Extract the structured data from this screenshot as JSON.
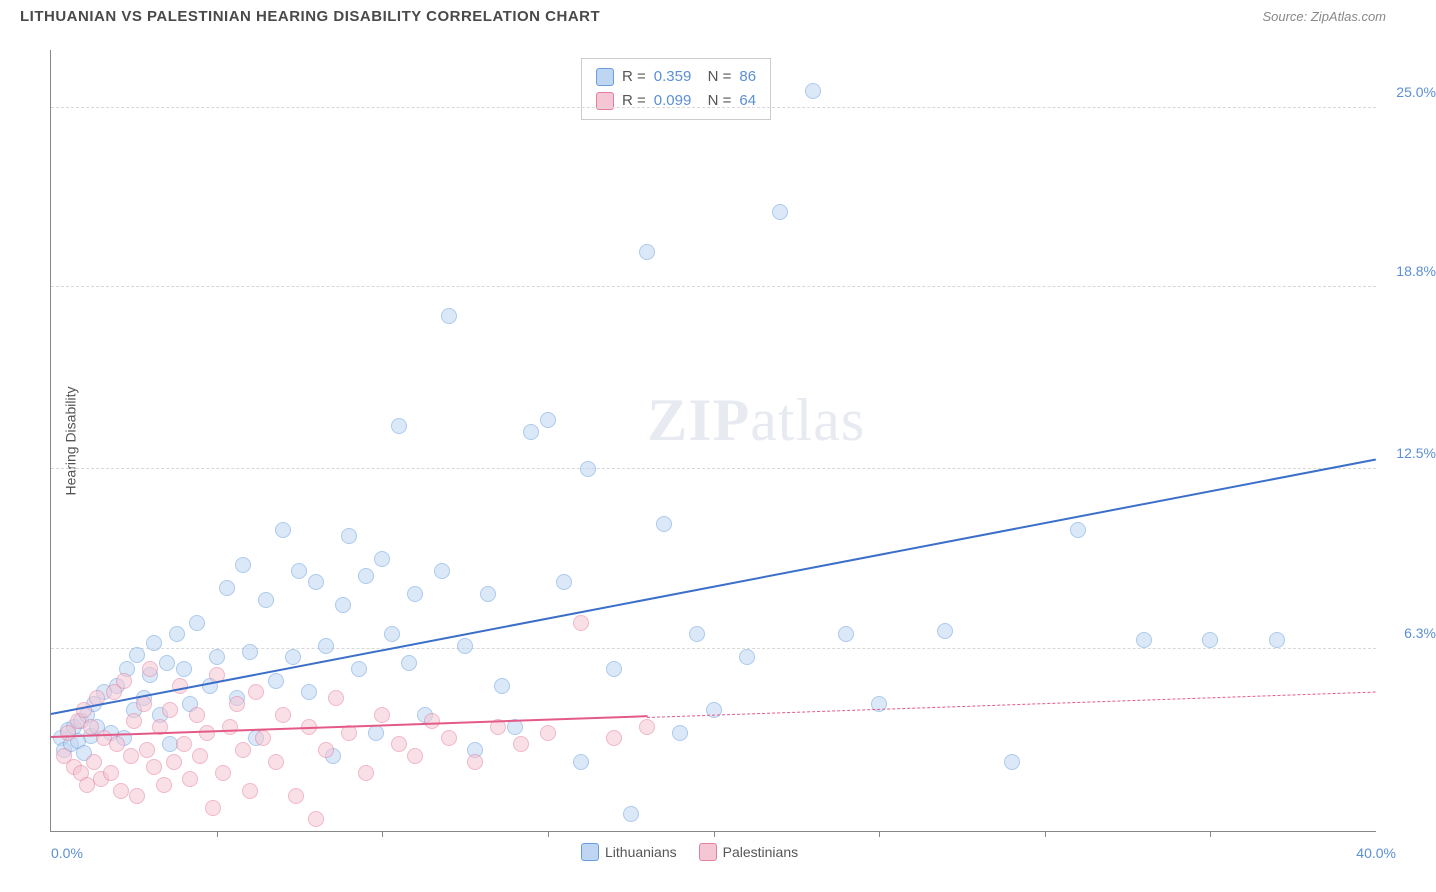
{
  "header": {
    "title": "LITHUANIAN VS PALESTINIAN HEARING DISABILITY CORRELATION CHART",
    "source": "Source: ZipAtlas.com"
  },
  "chart": {
    "type": "scatter",
    "yaxis_title": "Hearing Disability",
    "xlim": [
      0,
      40
    ],
    "ylim": [
      0,
      27
    ],
    "xlabel_min": "0.0%",
    "xlabel_max": "40.0%",
    "ytick_labels": [
      "6.3%",
      "12.5%",
      "18.8%",
      "25.0%"
    ],
    "ytick_values": [
      6.3,
      12.5,
      18.8,
      25.0
    ],
    "xtick_values": [
      5,
      10,
      15,
      20,
      25,
      30,
      35
    ],
    "background_color": "#ffffff",
    "grid_color": "#d8d8d8",
    "marker_radius": 8,
    "marker_opacity": 0.55,
    "watermark": "ZIPatlas",
    "series": [
      {
        "name": "Lithuanians",
        "fill": "#bfd6f2",
        "stroke": "#6a9fde",
        "text_color": "#5b8fd6",
        "R": "0.359",
        "N": "86",
        "trend": {
          "x1": 0,
          "y1": 4.0,
          "x2": 40,
          "y2": 12.8,
          "color": "#3b6fc9",
          "solid_until_x": 40
        },
        "points": [
          [
            0.3,
            3.2
          ],
          [
            0.4,
            2.8
          ],
          [
            0.5,
            3.5
          ],
          [
            0.6,
            3.0
          ],
          [
            0.7,
            3.6
          ],
          [
            0.8,
            3.1
          ],
          [
            0.9,
            3.8
          ],
          [
            1.0,
            2.7
          ],
          [
            1.1,
            4.0
          ],
          [
            1.2,
            3.3
          ],
          [
            1.3,
            4.4
          ],
          [
            1.4,
            3.6
          ],
          [
            1.6,
            4.8
          ],
          [
            1.8,
            3.4
          ],
          [
            2.0,
            5.0
          ],
          [
            2.2,
            3.2
          ],
          [
            2.3,
            5.6
          ],
          [
            2.5,
            4.2
          ],
          [
            2.6,
            6.1
          ],
          [
            2.8,
            4.6
          ],
          [
            3.0,
            5.4
          ],
          [
            3.1,
            6.5
          ],
          [
            3.3,
            4.0
          ],
          [
            3.5,
            5.8
          ],
          [
            3.6,
            3.0
          ],
          [
            3.8,
            6.8
          ],
          [
            4.0,
            5.6
          ],
          [
            4.2,
            4.4
          ],
          [
            4.4,
            7.2
          ],
          [
            4.8,
            5.0
          ],
          [
            5.0,
            6.0
          ],
          [
            5.3,
            8.4
          ],
          [
            5.6,
            4.6
          ],
          [
            5.8,
            9.2
          ],
          [
            6.0,
            6.2
          ],
          [
            6.2,
            3.2
          ],
          [
            6.5,
            8.0
          ],
          [
            6.8,
            5.2
          ],
          [
            7.0,
            10.4
          ],
          [
            7.3,
            6.0
          ],
          [
            7.5,
            9.0
          ],
          [
            7.8,
            4.8
          ],
          [
            8.0,
            8.6
          ],
          [
            8.3,
            6.4
          ],
          [
            8.5,
            2.6
          ],
          [
            8.8,
            7.8
          ],
          [
            9.0,
            10.2
          ],
          [
            9.3,
            5.6
          ],
          [
            9.5,
            8.8
          ],
          [
            9.8,
            3.4
          ],
          [
            10.0,
            9.4
          ],
          [
            10.3,
            6.8
          ],
          [
            10.5,
            14.0
          ],
          [
            10.8,
            5.8
          ],
          [
            11.0,
            8.2
          ],
          [
            11.3,
            4.0
          ],
          [
            11.8,
            9.0
          ],
          [
            12.0,
            17.8
          ],
          [
            12.5,
            6.4
          ],
          [
            12.8,
            2.8
          ],
          [
            13.2,
            8.2
          ],
          [
            13.6,
            5.0
          ],
          [
            14.0,
            3.6
          ],
          [
            14.5,
            13.8
          ],
          [
            15.0,
            14.2
          ],
          [
            15.5,
            8.6
          ],
          [
            16.0,
            2.4
          ],
          [
            16.2,
            12.5
          ],
          [
            17.0,
            5.6
          ],
          [
            17.5,
            0.6
          ],
          [
            18.0,
            20.0
          ],
          [
            18.5,
            10.6
          ],
          [
            19.0,
            3.4
          ],
          [
            19.5,
            6.8
          ],
          [
            20.0,
            4.2
          ],
          [
            21.0,
            6.0
          ],
          [
            22.0,
            21.4
          ],
          [
            23.0,
            25.6
          ],
          [
            24.0,
            6.8
          ],
          [
            25.0,
            4.4
          ],
          [
            27.0,
            6.9
          ],
          [
            29.0,
            2.4
          ],
          [
            31.0,
            10.4
          ],
          [
            33.0,
            6.6
          ],
          [
            35.0,
            6.6
          ],
          [
            37.0,
            6.6
          ]
        ]
      },
      {
        "name": "Palestinians",
        "fill": "#f5c6d3",
        "stroke": "#e57fa0",
        "text_color": "#e45a87",
        "R": "0.099",
        "N": "64",
        "trend": {
          "x1": 0,
          "y1": 3.2,
          "x2": 40,
          "y2": 4.8,
          "color": "#e45a87",
          "solid_until_x": 18
        },
        "points": [
          [
            0.4,
            2.6
          ],
          [
            0.5,
            3.4
          ],
          [
            0.7,
            2.2
          ],
          [
            0.8,
            3.8
          ],
          [
            0.9,
            2.0
          ],
          [
            1.0,
            4.2
          ],
          [
            1.1,
            1.6
          ],
          [
            1.2,
            3.6
          ],
          [
            1.3,
            2.4
          ],
          [
            1.4,
            4.6
          ],
          [
            1.5,
            1.8
          ],
          [
            1.6,
            3.2
          ],
          [
            1.8,
            2.0
          ],
          [
            1.9,
            4.8
          ],
          [
            2.0,
            3.0
          ],
          [
            2.1,
            1.4
          ],
          [
            2.2,
            5.2
          ],
          [
            2.4,
            2.6
          ],
          [
            2.5,
            3.8
          ],
          [
            2.6,
            1.2
          ],
          [
            2.8,
            4.4
          ],
          [
            2.9,
            2.8
          ],
          [
            3.0,
            5.6
          ],
          [
            3.1,
            2.2
          ],
          [
            3.3,
            3.6
          ],
          [
            3.4,
            1.6
          ],
          [
            3.6,
            4.2
          ],
          [
            3.7,
            2.4
          ],
          [
            3.9,
            5.0
          ],
          [
            4.0,
            3.0
          ],
          [
            4.2,
            1.8
          ],
          [
            4.4,
            4.0
          ],
          [
            4.5,
            2.6
          ],
          [
            4.7,
            3.4
          ],
          [
            4.9,
            0.8
          ],
          [
            5.0,
            5.4
          ],
          [
            5.2,
            2.0
          ],
          [
            5.4,
            3.6
          ],
          [
            5.6,
            4.4
          ],
          [
            5.8,
            2.8
          ],
          [
            6.0,
            1.4
          ],
          [
            6.2,
            4.8
          ],
          [
            6.4,
            3.2
          ],
          [
            6.8,
            2.4
          ],
          [
            7.0,
            4.0
          ],
          [
            7.4,
            1.2
          ],
          [
            7.8,
            3.6
          ],
          [
            8.0,
            0.4
          ],
          [
            8.3,
            2.8
          ],
          [
            8.6,
            4.6
          ],
          [
            9.0,
            3.4
          ],
          [
            9.5,
            2.0
          ],
          [
            10.0,
            4.0
          ],
          [
            10.5,
            3.0
          ],
          [
            11.0,
            2.6
          ],
          [
            11.5,
            3.8
          ],
          [
            12.0,
            3.2
          ],
          [
            12.8,
            2.4
          ],
          [
            13.5,
            3.6
          ],
          [
            14.2,
            3.0
          ],
          [
            15.0,
            3.4
          ],
          [
            16.0,
            7.2
          ],
          [
            17.0,
            3.2
          ],
          [
            18.0,
            3.6
          ]
        ]
      }
    ],
    "legend": {
      "series1_label": "Lithuanians",
      "series2_label": "Palestinians"
    }
  }
}
